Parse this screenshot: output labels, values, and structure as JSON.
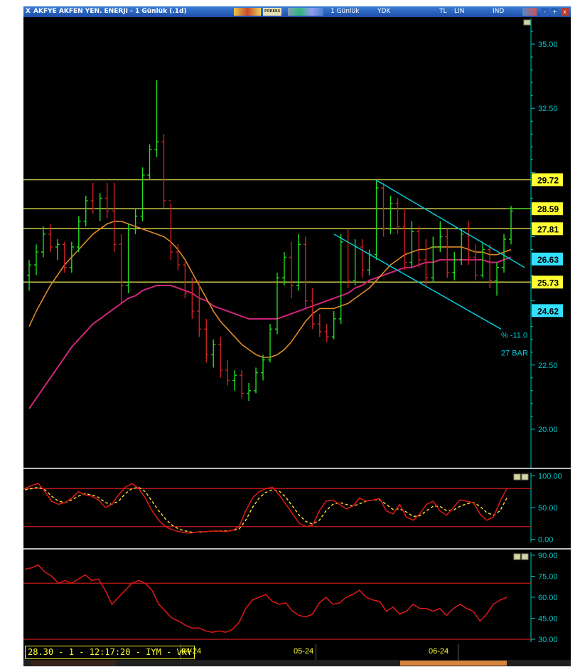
{
  "window": {
    "title": "AKFYE AKFEN YEN. ENERJI - 1 Günlük (.1d)",
    "close_glyph": "X",
    "toolbar": {
      "forex_label": "FOREKS",
      "period": "1 Günlük",
      "adjust": "YDK",
      "currency": "TL",
      "scale": "LIN",
      "mode": "IND",
      "minimize_glyph": "-",
      "maximize_glyph": "+",
      "close2_glyph": "x"
    }
  },
  "status": {
    "text": "28.30 - 1 - 12:17:20 - IYM - VKY"
  },
  "colors": {
    "up_bar": "#22dd22",
    "down_bar": "#cc2222",
    "ma_fast": "#e08a28",
    "ma_slow": "#d0257a",
    "level_line": "#c9c94a",
    "channel": "#00c8d8",
    "yellow_box": "#ffff33",
    "cyan_box": "#33e0ff",
    "oscillator_main": "#e01818",
    "oscillator_signal": "#ffe030",
    "axis": "#00c8c8"
  },
  "chart_data": [
    {
      "type": "candlestick",
      "title": "AKFYE AKFEN YEN. ENERJI - 1 Günlük (.1d)",
      "x_tick_labels": [
        "04-24",
        "05-24",
        "06-24"
      ],
      "y_ticks": [
        20.0,
        22.5,
        25.0,
        27.5,
        30.0,
        32.5,
        35.0
      ],
      "y_tick_labels": [
        "35.00",
        "32.50",
        "22.50",
        "20.00"
      ],
      "ylim": [
        18.5,
        36.0
      ],
      "price_levels": [
        {
          "value": 29.72,
          "label": "29.72",
          "style": "yellow"
        },
        {
          "value": 28.59,
          "label": "28.59",
          "style": "yellow"
        },
        {
          "value": 27.81,
          "label": "27.81",
          "style": "yellow"
        },
        {
          "value": 26.63,
          "label": "26.63",
          "style": "cyan"
        },
        {
          "value": 25.73,
          "label": "25.73",
          "style": "yellow"
        },
        {
          "value": 24.62,
          "label": "24.62",
          "style": "cyan"
        }
      ],
      "channel_annotation": {
        "percent": "% -11.0",
        "bars": "27 BAR"
      },
      "ohlc": [
        [
          26.0,
          26.6,
          25.4,
          26.4
        ],
        [
          26.4,
          27.2,
          26.0,
          26.9
        ],
        [
          26.9,
          27.9,
          26.7,
          27.6
        ],
        [
          27.6,
          28.0,
          26.9,
          27.1
        ],
        [
          27.1,
          27.4,
          26.6,
          27.2
        ],
        [
          27.2,
          27.3,
          26.1,
          26.3
        ],
        [
          26.3,
          27.3,
          26.1,
          27.1
        ],
        [
          27.1,
          28.3,
          26.9,
          28.1
        ],
        [
          28.1,
          29.1,
          27.9,
          28.9
        ],
        [
          28.9,
          29.6,
          28.4,
          28.6
        ],
        [
          28.6,
          29.2,
          28.1,
          29.0
        ],
        [
          29.0,
          29.6,
          28.2,
          28.5
        ],
        [
          28.5,
          29.6,
          26.9,
          27.2
        ],
        [
          27.2,
          27.6,
          24.9,
          25.6
        ],
        [
          25.6,
          28.0,
          25.3,
          27.8
        ],
        [
          27.8,
          28.6,
          27.6,
          28.3
        ],
        [
          28.3,
          30.2,
          28.1,
          29.9
        ],
        [
          29.9,
          31.1,
          29.7,
          30.9
        ],
        [
          30.9,
          33.6,
          30.6,
          31.2
        ],
        [
          31.2,
          31.5,
          28.6,
          28.9
        ],
        [
          28.9,
          28.8,
          26.6,
          26.9
        ],
        [
          26.9,
          27.2,
          26.2,
          26.4
        ],
        [
          26.4,
          26.5,
          25.1,
          25.3
        ],
        [
          25.3,
          25.9,
          24.3,
          24.6
        ],
        [
          24.6,
          25.8,
          23.6,
          23.9
        ],
        [
          23.9,
          24.3,
          22.6,
          22.9
        ],
        [
          22.9,
          23.5,
          22.4,
          23.3
        ],
        [
          23.3,
          23.6,
          22.0,
          22.3
        ],
        [
          22.3,
          22.7,
          21.7,
          21.9
        ],
        [
          21.9,
          22.3,
          21.5,
          22.1
        ],
        [
          22.1,
          22.3,
          21.2,
          21.4
        ],
        [
          21.4,
          21.8,
          21.1,
          21.5
        ],
        [
          21.5,
          22.4,
          21.4,
          22.2
        ],
        [
          22.2,
          22.9,
          21.9,
          22.7
        ],
        [
          22.7,
          24.1,
          22.6,
          23.9
        ],
        [
          23.9,
          26.1,
          23.7,
          25.9
        ],
        [
          25.9,
          26.9,
          25.6,
          26.7
        ],
        [
          26.7,
          27.3,
          25.1,
          25.6
        ],
        [
          25.6,
          27.6,
          25.4,
          27.2
        ],
        [
          27.2,
          27.5,
          24.7,
          25.0
        ],
        [
          25.0,
          25.5,
          23.9,
          24.1
        ],
        [
          24.1,
          24.5,
          23.6,
          23.8
        ],
        [
          23.8,
          24.1,
          23.4,
          23.6
        ],
        [
          23.6,
          24.6,
          23.5,
          24.3
        ],
        [
          24.3,
          27.6,
          24.1,
          27.3
        ],
        [
          27.3,
          27.8,
          25.5,
          25.8
        ],
        [
          25.8,
          27.4,
          25.6,
          27.1
        ],
        [
          27.1,
          27.4,
          25.9,
          26.2
        ],
        [
          26.2,
          27.0,
          26.0,
          26.8
        ],
        [
          26.8,
          29.7,
          26.6,
          29.4
        ],
        [
          29.4,
          29.6,
          27.5,
          27.8
        ],
        [
          27.8,
          29.1,
          27.6,
          28.8
        ],
        [
          28.8,
          29.0,
          27.6,
          27.9
        ],
        [
          27.9,
          28.6,
          26.2,
          26.5
        ],
        [
          26.5,
          28.1,
          26.3,
          27.7
        ],
        [
          27.7,
          27.9,
          26.3,
          26.6
        ],
        [
          26.6,
          27.4,
          25.6,
          25.9
        ],
        [
          25.9,
          27.5,
          25.7,
          27.1
        ],
        [
          27.1,
          28.1,
          26.9,
          27.5
        ],
        [
          27.5,
          27.8,
          25.9,
          26.1
        ],
        [
          26.1,
          26.9,
          25.8,
          26.6
        ],
        [
          26.6,
          27.8,
          26.4,
          27.6
        ],
        [
          27.6,
          28.1,
          26.4,
          26.7
        ],
        [
          26.7,
          27.2,
          25.8,
          26.0
        ],
        [
          26.0,
          27.3,
          25.9,
          27.0
        ],
        [
          27.0,
          27.2,
          25.5,
          25.8
        ],
        [
          25.8,
          26.5,
          25.2,
          26.3
        ],
        [
          26.3,
          27.6,
          26.1,
          27.4
        ],
        [
          27.4,
          28.7,
          27.2,
          28.5
        ]
      ],
      "ma_fast": [
        24.0,
        24.6,
        25.1,
        25.6,
        26.0,
        26.4,
        26.7,
        27.0,
        27.3,
        27.6,
        27.8,
        28.0,
        28.1,
        28.1,
        28.0,
        27.9,
        27.8,
        27.7,
        27.6,
        27.5,
        27.3,
        27.0,
        26.6,
        26.1,
        25.6,
        25.1,
        24.6,
        24.2,
        23.9,
        23.6,
        23.3,
        23.1,
        22.9,
        22.8,
        22.8,
        22.9,
        23.1,
        23.4,
        23.8,
        24.2,
        24.5,
        24.7,
        24.7,
        24.7,
        24.8,
        24.9,
        25.1,
        25.3,
        25.5,
        25.8,
        26.1,
        26.4,
        26.6,
        26.8,
        26.9,
        27.0,
        27.0,
        27.1,
        27.1,
        27.1,
        27.1,
        27.1,
        27.0,
        26.9,
        26.9,
        26.8,
        26.8,
        26.9,
        27.0
      ],
      "ma_slow": [
        20.8,
        21.2,
        21.6,
        22.0,
        22.4,
        22.8,
        23.2,
        23.5,
        23.8,
        24.1,
        24.3,
        24.5,
        24.7,
        24.9,
        25.1,
        25.2,
        25.4,
        25.5,
        25.6,
        25.6,
        25.6,
        25.5,
        25.4,
        25.3,
        25.1,
        25.0,
        24.8,
        24.7,
        24.6,
        24.5,
        24.4,
        24.3,
        24.3,
        24.3,
        24.3,
        24.3,
        24.4,
        24.5,
        24.6,
        24.7,
        24.8,
        24.9,
        25.0,
        25.1,
        25.2,
        25.3,
        25.5,
        25.6,
        25.8,
        25.9,
        26.0,
        26.1,
        26.2,
        26.3,
        26.3,
        26.4,
        26.5,
        26.5,
        26.6,
        26.6,
        26.6,
        26.6,
        26.6,
        26.6,
        26.6,
        26.5,
        26.5,
        26.6,
        26.7
      ]
    },
    {
      "type": "line",
      "y_ticks": [
        0,
        50,
        100
      ],
      "y_tick_labels": [
        "100.00",
        "50.00",
        "0.00"
      ],
      "reference_lines": [
        80,
        20
      ],
      "ylim": [
        -5,
        105
      ],
      "series": [
        {
          "values": [
            80,
            85,
            88,
            75,
            60,
            55,
            58,
            65,
            75,
            70,
            68,
            62,
            50,
            55,
            70,
            82,
            88,
            80,
            65,
            45,
            30,
            20,
            15,
            12,
            10,
            10,
            12,
            12,
            13,
            13,
            12,
            14,
            20,
            45,
            65,
            75,
            80,
            82,
            70,
            55,
            40,
            25,
            20,
            22,
            45,
            60,
            62,
            55,
            48,
            52,
            65,
            60,
            62,
            64,
            45,
            40,
            55,
            35,
            30,
            40,
            55,
            60,
            45,
            38,
            50,
            62,
            60,
            58,
            40,
            30,
            35,
            60,
            80
          ]
        },
        {
          "values": [
            78,
            80,
            82,
            78,
            68,
            60,
            58,
            62,
            68,
            72,
            70,
            66,
            58,
            55,
            60,
            72,
            80,
            82,
            75,
            60,
            45,
            32,
            22,
            16,
            13,
            11,
            11,
            12,
            13,
            13,
            13,
            14,
            16,
            30,
            50,
            65,
            74,
            78,
            76,
            66,
            52,
            38,
            28,
            24,
            30,
            45,
            55,
            58,
            55,
            52,
            56,
            60,
            62,
            62,
            55,
            47,
            48,
            43,
            36,
            37,
            45,
            52,
            52,
            45,
            46,
            52,
            56,
            58,
            52,
            42,
            38,
            45,
            65
          ]
        }
      ]
    },
    {
      "type": "line",
      "y_ticks": [
        30,
        45,
        60,
        75,
        90
      ],
      "y_tick_labels": [
        "90.00",
        "75.00",
        "60.00",
        "45.00",
        "30.00"
      ],
      "reference_lines": [
        70,
        30
      ],
      "ylim": [
        28,
        92
      ],
      "series": [
        {
          "values": [
            80,
            81,
            83,
            78,
            75,
            70,
            72,
            70,
            73,
            76,
            72,
            73,
            65,
            55,
            60,
            65,
            70,
            72,
            70,
            65,
            55,
            50,
            45,
            43,
            40,
            38,
            38,
            36,
            35,
            36,
            35,
            37,
            42,
            52,
            58,
            60,
            62,
            57,
            55,
            56,
            50,
            47,
            46,
            48,
            56,
            60,
            55,
            56,
            60,
            62,
            65,
            60,
            58,
            57,
            50,
            53,
            48,
            50,
            55,
            52,
            52,
            50,
            52,
            47,
            52,
            55,
            52,
            50,
            43,
            48,
            55,
            58,
            60
          ]
        }
      ]
    }
  ]
}
